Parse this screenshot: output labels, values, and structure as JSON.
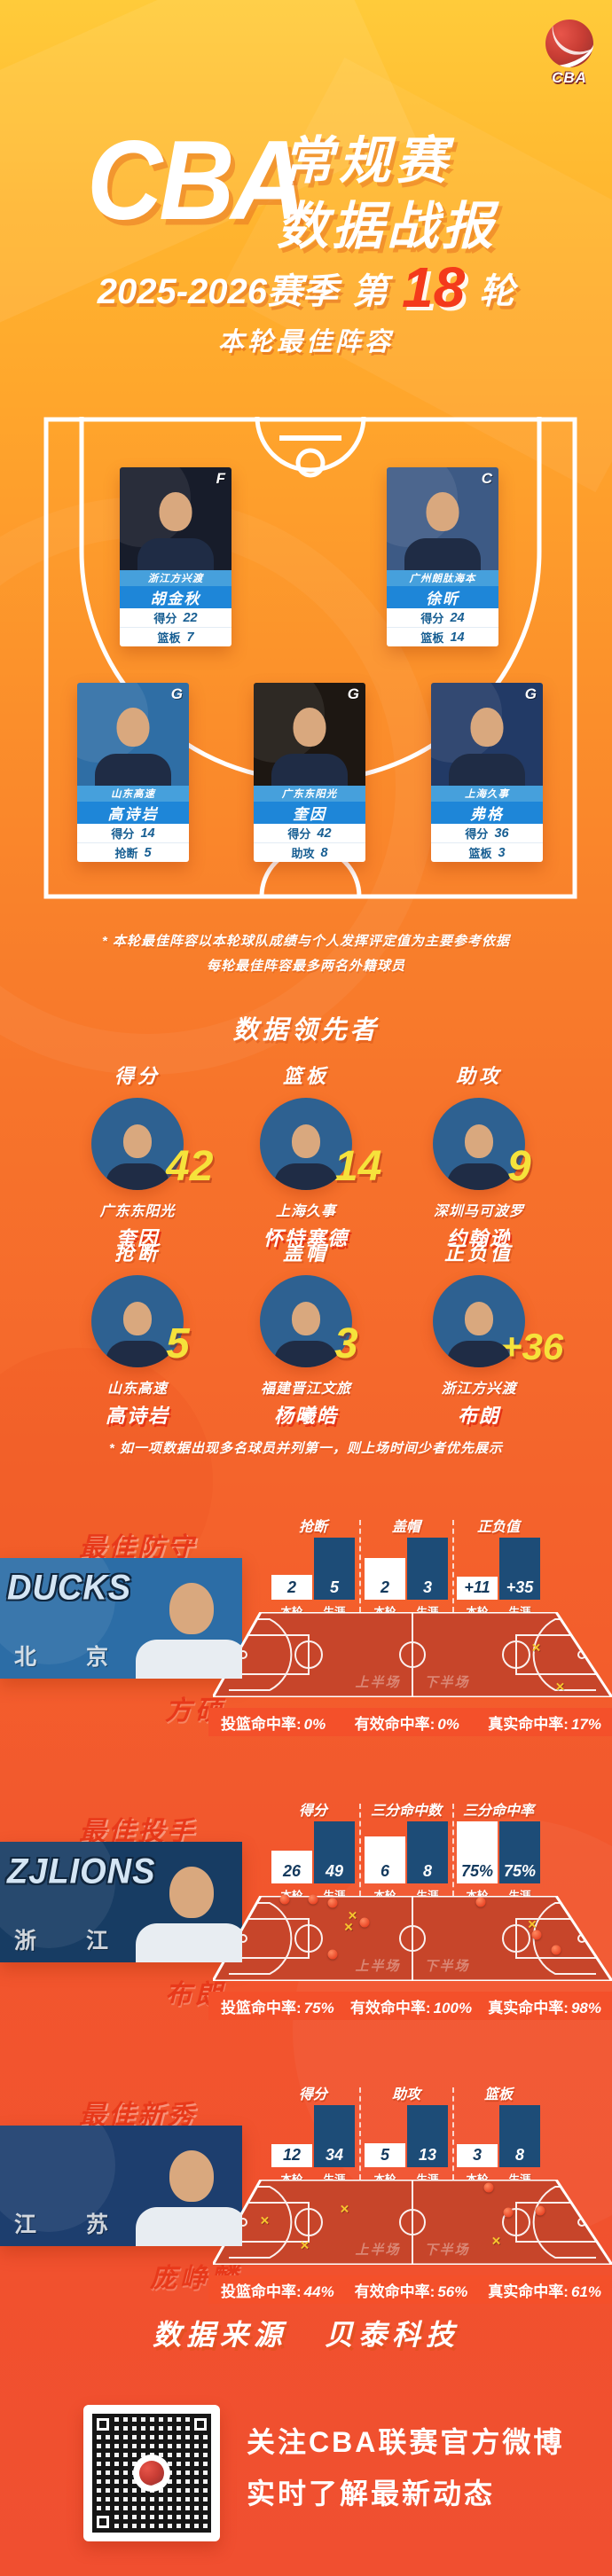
{
  "theme": {
    "accent_red": "#E8391A",
    "round_number_red": "#F43A1B",
    "card_blue": "#1E86D8",
    "card_blue_light": "#46A0DC",
    "leader_circle_blue": "#2E6191",
    "bar_navy": "#1D4C77",
    "court_red": "#C7452A",
    "strip_red": "#F4502A",
    "value_yellow": "#F6E23B",
    "background_top": "#FFCB3A",
    "background_bottom": "#F04F30"
  },
  "header": {
    "logo_text": "CBA",
    "title_en": "CBA",
    "title_cn_line1": "常规赛",
    "title_cn_line2": "数据战报",
    "season": "2025-2026赛季",
    "round_prefix": "第",
    "round_number": "18",
    "round_suffix": "轮"
  },
  "lineup": {
    "title": "本轮最佳阵容",
    "players": [
      {
        "position": "F",
        "team": "浙江方兴渡",
        "name": "胡金秋",
        "stat1_label": "得分",
        "stat1_value": "22",
        "stat2_label": "篮板",
        "stat2_value": "7",
        "photo_bg": "#171C2A"
      },
      {
        "position": "C",
        "team": "广州朗肽海本",
        "name": "徐昕",
        "stat1_label": "得分",
        "stat1_value": "24",
        "stat2_label": "篮板",
        "stat2_value": "14",
        "photo_bg": "#3D5A85"
      },
      {
        "position": "G",
        "team": "山东高速",
        "name": "高诗岩",
        "stat1_label": "得分",
        "stat1_value": "14",
        "stat2_label": "抢断",
        "stat2_value": "5",
        "photo_bg": "#2F6EA5"
      },
      {
        "position": "G",
        "team": "广东东阳光",
        "name": "奎因",
        "stat1_label": "得分",
        "stat1_value": "42",
        "stat2_label": "助攻",
        "stat2_value": "8",
        "photo_bg": "#1D1712"
      },
      {
        "position": "G",
        "team": "上海久事",
        "name": "弗格",
        "stat1_label": "得分",
        "stat1_value": "36",
        "stat2_label": "篮板",
        "stat2_value": "3",
        "photo_bg": "#223A66"
      }
    ],
    "footnote_line1": "* 本轮最佳阵容以本轮球队成绩与个人发挥评定值为主要参考依据",
    "footnote_line2": "每轮最佳阵容最多两名外籍球员"
  },
  "leaders": {
    "title": "数据领先者",
    "items": [
      {
        "category": "得分",
        "value": "42",
        "team": "广东东阳光",
        "name": "奎因"
      },
      {
        "category": "篮板",
        "value": "14",
        "team": "上海久事",
        "name": "怀特塞德"
      },
      {
        "category": "助攻",
        "value": "9",
        "team": "深圳马可波罗",
        "name": "约翰逊"
      },
      {
        "category": "抢断",
        "value": "5",
        "team": "山东高速",
        "name": "高诗岩"
      },
      {
        "category": "盖帽",
        "value": "3",
        "team": "福建晋江文旅",
        "name": "杨曦皓"
      },
      {
        "category": "正负值",
        "value": "+36",
        "team": "浙江方兴渡",
        "name": "布朗"
      }
    ],
    "footnote": "* 如一项数据出现多名球员并列第一，则上场时间少者优先展示"
  },
  "highlights": [
    {
      "title": "最佳防守",
      "player": "方硕",
      "logo_main": "DUCKS",
      "logo_sub": "北京",
      "photo_bg": "#2C6DA6",
      "axis": {
        "round": "本轮",
        "career": "生涯"
      },
      "stats": [
        {
          "label": "抢断",
          "round": "2",
          "career": "5"
        },
        {
          "label": "盖帽",
          "round": "2",
          "career": "3"
        },
        {
          "label": "正负值",
          "round": "+11",
          "career": "+35"
        }
      ],
      "court": {
        "first_half": "上半场",
        "second_half": "下半场"
      },
      "percentages": [
        {
          "label": "投篮命中率:",
          "value": "0%"
        },
        {
          "label": "有效命中率:",
          "value": "0%"
        },
        {
          "label": "真实命中率:",
          "value": "17%"
        }
      ],
      "markers": {
        "made": [],
        "missed": [
          [
            81,
            42
          ],
          [
            87,
            88
          ]
        ]
      }
    },
    {
      "title": "最佳投手",
      "player": "布朗",
      "logo_main": "ZJLIONS",
      "logo_sub": "浙江",
      "photo_bg": "#173C63",
      "axis": {
        "round": "本轮",
        "career": "生涯"
      },
      "stats": [
        {
          "label": "得分",
          "round": "26",
          "career": "49"
        },
        {
          "label": "三分命中数",
          "round": "6",
          "career": "8"
        },
        {
          "label": "三分命中率",
          "round": "75%",
          "career": "75%"
        }
      ],
      "court": {
        "first_half": "上半场",
        "second_half": "下半场"
      },
      "percentages": [
        {
          "label": "投篮命中率:",
          "value": "75%"
        },
        {
          "label": "有效命中率:",
          "value": "100%"
        },
        {
          "label": "真实命中率:",
          "value": "98%"
        }
      ],
      "markers": {
        "made": [
          [
            18,
            4
          ],
          [
            25,
            4
          ],
          [
            30,
            8
          ],
          [
            38,
            31
          ],
          [
            30,
            69
          ],
          [
            67,
            7
          ],
          [
            81,
            46
          ],
          [
            86,
            64
          ]
        ],
        "missed": [
          [
            35,
            23
          ],
          [
            34,
            36
          ],
          [
            80,
            33
          ]
        ]
      }
    },
    {
      "title": "最佳新秀",
      "player": "庞峥麟",
      "logo_main": "",
      "logo_sub": "江苏",
      "photo_bg": "#1D3E6E",
      "axis": {
        "round": "本轮",
        "career": "生涯"
      },
      "stats": [
        {
          "label": "得分",
          "round": "12",
          "career": "34"
        },
        {
          "label": "助攻",
          "round": "5",
          "career": "13"
        },
        {
          "label": "篮板",
          "round": "3",
          "career": "8"
        }
      ],
      "court": {
        "first_half": "上半场",
        "second_half": "下半场"
      },
      "percentages": [
        {
          "label": "投篮命中率:",
          "value": "44%"
        },
        {
          "label": "有效命中率:",
          "value": "56%"
        },
        {
          "label": "真实命中率:",
          "value": "61%"
        }
      ],
      "markers": {
        "made": [
          [
            69,
            9
          ],
          [
            74,
            39
          ],
          [
            82,
            36
          ]
        ],
        "missed": [
          [
            33,
            34
          ],
          [
            13,
            48
          ],
          [
            23,
            77
          ],
          [
            71,
            72
          ]
        ]
      }
    }
  ],
  "chart_data": [
    {
      "type": "bar",
      "title": "最佳防守 方硕",
      "categories": [
        "抢断",
        "盖帽",
        "正负值"
      ],
      "series": [
        {
          "name": "本轮",
          "values": [
            2,
            2,
            11
          ]
        },
        {
          "name": "生涯",
          "values": [
            5,
            3,
            35
          ]
        }
      ],
      "legend_position": "below-bars",
      "grid": false
    },
    {
      "type": "bar",
      "title": "最佳投手 布朗",
      "categories": [
        "得分",
        "三分命中数",
        "三分命中率"
      ],
      "series": [
        {
          "name": "本轮",
          "values": [
            26,
            6,
            75
          ]
        },
        {
          "name": "生涯",
          "values": [
            49,
            8,
            75
          ]
        }
      ],
      "legend_position": "below-bars",
      "grid": false
    },
    {
      "type": "bar",
      "title": "最佳新秀 庞峥麟",
      "categories": [
        "得分",
        "助攻",
        "篮板"
      ],
      "series": [
        {
          "name": "本轮",
          "values": [
            12,
            5,
            3
          ]
        },
        {
          "name": "生涯",
          "values": [
            34,
            13,
            8
          ]
        }
      ],
      "legend_position": "below-bars",
      "grid": false
    }
  ],
  "source": {
    "label": "数据来源",
    "value": "贝泰科技"
  },
  "footer": {
    "line1": "关注CBA联赛官方微博",
    "line2": "实时了解最新动态"
  }
}
